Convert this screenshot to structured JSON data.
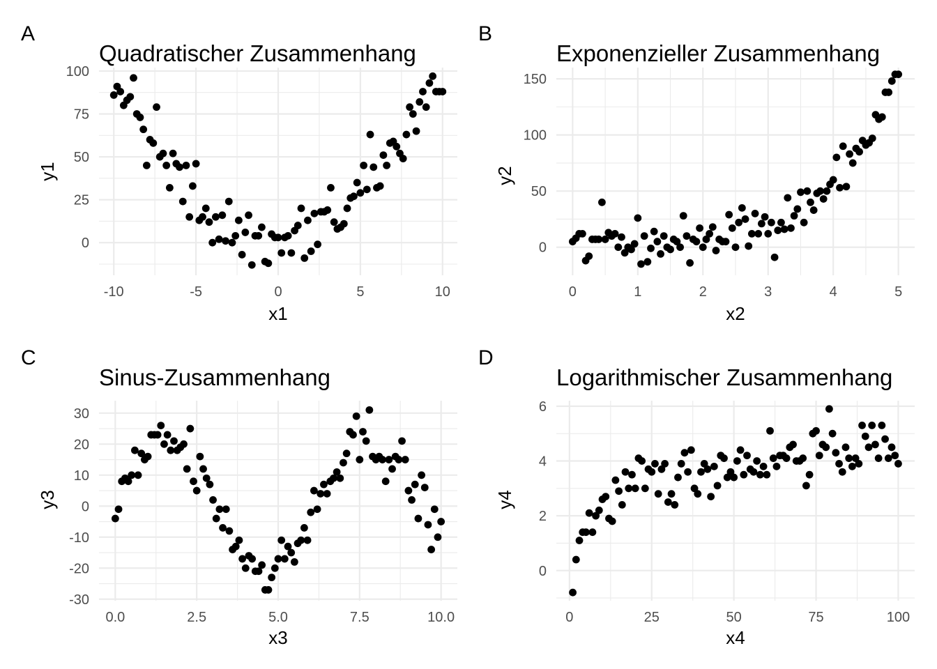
{
  "chart_data": [
    {
      "type": "scatter",
      "tag": "A",
      "title": "Quadratischer Zusammenhang",
      "xlabel": "x1",
      "ylabel": "y1",
      "xlim": [
        -10.9,
        10.9
      ],
      "ylim": [
        -19,
        102
      ],
      "xticks": [
        -10,
        -5,
        0,
        5,
        10
      ],
      "xtick_labels": [
        "-10",
        "-5",
        "0",
        "5",
        "10"
      ],
      "yticks": [
        0,
        25,
        50,
        75,
        100
      ],
      "ytick_labels": [
        "0",
        "25",
        "50",
        "75",
        "100"
      ],
      "grid": true,
      "x": [
        -10.0,
        -9.8,
        -9.6,
        -9.4,
        -9.2,
        -9.0,
        -8.8,
        -8.6,
        -8.4,
        -8.2,
        -8.0,
        -7.8,
        -7.6,
        -7.4,
        -7.2,
        -7.0,
        -6.8,
        -6.6,
        -6.4,
        -6.2,
        -6.0,
        -5.8,
        -5.6,
        -5.4,
        -5.2,
        -5.0,
        -4.8,
        -4.6,
        -4.4,
        -4.2,
        -4.0,
        -3.8,
        -3.6,
        -3.4,
        -3.2,
        -3.0,
        -2.8,
        -2.6,
        -2.4,
        -2.2,
        -2.0,
        -1.8,
        -1.6,
        -1.4,
        -1.2,
        -1.0,
        -0.8,
        -0.6,
        -0.4,
        -0.2,
        0.0,
        0.2,
        0.4,
        0.6,
        0.8,
        1.0,
        1.2,
        1.4,
        1.6,
        1.8,
        2.0,
        2.2,
        2.4,
        2.6,
        2.8,
        3.0,
        3.2,
        3.4,
        3.6,
        3.8,
        4.0,
        4.2,
        4.4,
        4.6,
        4.8,
        5.0,
        5.2,
        5.4,
        5.6,
        5.8,
        6.0,
        6.2,
        6.4,
        6.6,
        6.8,
        7.0,
        7.2,
        7.4,
        7.6,
        7.8,
        8.0,
        8.2,
        8.4,
        8.6,
        8.8,
        9.0,
        9.2,
        9.4,
        9.6,
        9.8,
        10.0
      ],
      "y": [
        86,
        91,
        88,
        80,
        83,
        85,
        96,
        75,
        73,
        66,
        45,
        60,
        58,
        79,
        50,
        52,
        45,
        32,
        52,
        46,
        44,
        24,
        45,
        15,
        33,
        46,
        13,
        15,
        20,
        12,
        0,
        15,
        2,
        16,
        1,
        24,
        0,
        4,
        13,
        -7,
        6,
        16,
        -13,
        4,
        4,
        9,
        -11,
        -12,
        5,
        3,
        3,
        -6,
        3,
        4,
        -6,
        7,
        10,
        20,
        -9,
        13,
        -5,
        17,
        -1,
        18,
        18,
        19,
        32,
        12,
        8,
        9,
        11,
        20,
        26,
        27,
        35,
        29,
        45,
        31,
        63,
        44,
        32,
        33,
        51,
        45,
        58,
        59,
        56,
        52,
        49,
        63,
        79,
        75,
        65,
        82,
        88,
        79,
        93,
        97,
        88,
        88,
        88
      ]
    },
    {
      "type": "scatter",
      "tag": "B",
      "title": "Exponenzieller Zusammenhang",
      "xlabel": "x2",
      "ylabel": "y2",
      "xlim": [
        -0.25,
        5.25
      ],
      "ylim": [
        -25,
        160
      ],
      "xticks": [
        0,
        1,
        2,
        3,
        4,
        5
      ],
      "xtick_labels": [
        "0",
        "1",
        "2",
        "3",
        "4",
        "5"
      ],
      "yticks": [
        0,
        50,
        100,
        150
      ],
      "ytick_labels": [
        "0",
        "50",
        "100",
        "150"
      ],
      "grid": true,
      "x": [
        0.0,
        0.05,
        0.1,
        0.15,
        0.2,
        0.25,
        0.3,
        0.35,
        0.4,
        0.45,
        0.5,
        0.55,
        0.6,
        0.65,
        0.7,
        0.75,
        0.8,
        0.85,
        0.9,
        0.95,
        1.0,
        1.05,
        1.1,
        1.15,
        1.2,
        1.25,
        1.3,
        1.35,
        1.4,
        1.45,
        1.5,
        1.55,
        1.6,
        1.65,
        1.7,
        1.75,
        1.8,
        1.85,
        1.9,
        1.95,
        2.0,
        2.05,
        2.1,
        2.15,
        2.2,
        2.25,
        2.3,
        2.35,
        2.4,
        2.45,
        2.5,
        2.55,
        2.6,
        2.65,
        2.7,
        2.75,
        2.8,
        2.85,
        2.9,
        2.95,
        3.0,
        3.05,
        3.1,
        3.15,
        3.2,
        3.25,
        3.3,
        3.35,
        3.4,
        3.45,
        3.5,
        3.55,
        3.6,
        3.65,
        3.7,
        3.75,
        3.8,
        3.85,
        3.9,
        3.95,
        4.0,
        4.05,
        4.1,
        4.15,
        4.2,
        4.25,
        4.3,
        4.35,
        4.4,
        4.45,
        4.5,
        4.55,
        4.6,
        4.65,
        4.7,
        4.75,
        4.8,
        4.85,
        4.9,
        4.95,
        5.0
      ],
      "y": [
        5,
        8,
        12,
        12,
        -12,
        -8,
        7,
        7,
        7,
        40,
        7,
        13,
        10,
        12,
        0,
        9,
        -5,
        0,
        -2,
        3,
        26,
        -15,
        10,
        -13,
        -1,
        14,
        5,
        -6,
        10,
        0,
        -2,
        7,
        5,
        0,
        28,
        10,
        -14,
        7,
        5,
        17,
        0,
        7,
        12,
        18,
        -3,
        7,
        5,
        5,
        29,
        17,
        0,
        22,
        35,
        25,
        1,
        12,
        30,
        12,
        21,
        27,
        12,
        22,
        -9,
        15,
        22,
        16,
        44,
        17,
        28,
        34,
        49,
        22,
        50,
        40,
        33,
        48,
        50,
        43,
        50,
        56,
        60,
        80,
        53,
        90,
        54,
        83,
        75,
        88,
        85,
        95,
        91,
        93,
        97,
        118,
        114,
        116,
        138,
        138,
        148,
        154,
        154
      ]
    },
    {
      "type": "scatter",
      "tag": "C",
      "title": "Sinus-Zusammenhang",
      "xlabel": "x3",
      "ylabel": "y3",
      "xlim": [
        -0.5,
        10.5
      ],
      "ylim": [
        -30.5,
        34
      ],
      "xticks": [
        0,
        2.5,
        5,
        7.5,
        10
      ],
      "xtick_labels": [
        "0.0",
        "2.5",
        "5.0",
        "7.5",
        "10.0"
      ],
      "yticks": [
        -30,
        -20,
        -10,
        0,
        10,
        20,
        30
      ],
      "ytick_labels": [
        "-30",
        "-20",
        "-10",
        "0",
        "10",
        "20",
        "30"
      ],
      "grid": true,
      "x": [
        0.0,
        0.1,
        0.2,
        0.3,
        0.4,
        0.5,
        0.6,
        0.7,
        0.8,
        0.9,
        1.0,
        1.1,
        1.2,
        1.3,
        1.4,
        1.5,
        1.6,
        1.7,
        1.8,
        1.9,
        2.0,
        2.1,
        2.2,
        2.3,
        2.4,
        2.5,
        2.6,
        2.7,
        2.8,
        2.9,
        3.0,
        3.1,
        3.2,
        3.3,
        3.4,
        3.5,
        3.6,
        3.7,
        3.8,
        3.9,
        4.0,
        4.1,
        4.2,
        4.3,
        4.4,
        4.5,
        4.6,
        4.7,
        4.8,
        4.9,
        5.0,
        5.1,
        5.2,
        5.3,
        5.4,
        5.5,
        5.6,
        5.7,
        5.8,
        5.9,
        6.0,
        6.1,
        6.2,
        6.3,
        6.4,
        6.5,
        6.6,
        6.7,
        6.8,
        6.9,
        7.0,
        7.1,
        7.2,
        7.3,
        7.4,
        7.5,
        7.6,
        7.7,
        7.8,
        7.9,
        8.0,
        8.1,
        8.2,
        8.3,
        8.4,
        8.5,
        8.6,
        8.7,
        8.8,
        8.9,
        9.0,
        9.1,
        9.2,
        9.3,
        9.4,
        9.5,
        9.6,
        9.7,
        9.8,
        9.9,
        10.0
      ],
      "y": [
        -4,
        -1,
        8,
        9,
        8,
        10,
        18,
        10,
        17,
        15,
        16,
        23,
        23,
        23,
        26,
        20,
        23,
        18,
        21,
        18,
        19,
        20,
        12,
        25,
        8,
        5,
        16,
        12,
        9,
        7,
        2,
        -4,
        -1,
        -7,
        -1,
        -8,
        -14,
        -13,
        -11,
        -17,
        -20,
        -16,
        -17,
        -21,
        -21,
        -19,
        -27,
        -27,
        -23,
        -20,
        -17,
        -11,
        -17,
        -13,
        -15,
        -18,
        -12,
        -11,
        -7,
        -11,
        -2,
        5,
        -1,
        4,
        7,
        4,
        8,
        9,
        11,
        9,
        14,
        17,
        24,
        23,
        29,
        15,
        24,
        21,
        31,
        16,
        15,
        16,
        15,
        8,
        15,
        12,
        16,
        15,
        21,
        15,
        5,
        2,
        7,
        -4,
        10,
        6,
        -6,
        -14,
        -1,
        -10,
        -5
      ]
    },
    {
      "type": "scatter",
      "tag": "D",
      "title": "Logarithmischer Zusammenhang",
      "xlabel": "x4",
      "ylabel": "y4",
      "xlim": [
        -4,
        105
      ],
      "ylim": [
        -1.1,
        6.2
      ],
      "xticks": [
        0,
        25,
        50,
        75,
        100
      ],
      "xtick_labels": [
        "0",
        "25",
        "50",
        "75",
        "100"
      ],
      "yticks": [
        0,
        2,
        4,
        6
      ],
      "ytick_labels": [
        "0",
        "2",
        "4",
        "6"
      ],
      "grid": true,
      "x": [
        1,
        2,
        3,
        4,
        5,
        6,
        7,
        8,
        9,
        10,
        11,
        12,
        13,
        14,
        15,
        16,
        17,
        18,
        19,
        20,
        21,
        22,
        23,
        24,
        25,
        26,
        27,
        28,
        29,
        30,
        31,
        32,
        33,
        34,
        35,
        36,
        37,
        38,
        39,
        40,
        41,
        42,
        43,
        44,
        45,
        46,
        47,
        48,
        49,
        50,
        51,
        52,
        53,
        54,
        55,
        56,
        57,
        58,
        59,
        60,
        61,
        62,
        63,
        64,
        65,
        66,
        67,
        68,
        69,
        70,
        71,
        72,
        73,
        74,
        75,
        76,
        77,
        78,
        79,
        80,
        81,
        82,
        83,
        84,
        85,
        86,
        87,
        88,
        89,
        90,
        91,
        92,
        93,
        94,
        95,
        96,
        97,
        98,
        99,
        100
      ],
      "y": [
        -0.8,
        0.4,
        1.1,
        1.4,
        1.4,
        2.1,
        1.4,
        2.0,
        2.2,
        2.6,
        2.7,
        1.9,
        1.8,
        3.3,
        2.9,
        2.4,
        3.6,
        3.0,
        3.5,
        3.0,
        4.1,
        4.0,
        3.0,
        3.7,
        3.6,
        3.9,
        2.8,
        3.7,
        3.9,
        2.5,
        2.8,
        2.4,
        3.4,
        3.9,
        4.3,
        3.6,
        4.4,
        3.0,
        2.8,
        3.6,
        3.9,
        3.7,
        2.7,
        3.8,
        3.1,
        4.2,
        4.1,
        3.4,
        3.6,
        3.4,
        4.0,
        4.4,
        3.5,
        4.2,
        3.7,
        3.6,
        4.0,
        3.5,
        3.8,
        3.5,
        5.1,
        4.1,
        3.8,
        4.2,
        4.2,
        4.1,
        4.5,
        4.6,
        4.0,
        4.0,
        4.1,
        3.1,
        3.5,
        5.0,
        5.1,
        4.2,
        4.6,
        4.5,
        5.9,
        5.0,
        4.3,
        3.9,
        3.6,
        4.5,
        4.1,
        3.8,
        4.1,
        3.9,
        5.3,
        4.9,
        4.5,
        5.3,
        4.6,
        4.1,
        5.3,
        4.8,
        4.1,
        4.5,
        4.2,
        3.9
      ]
    }
  ]
}
